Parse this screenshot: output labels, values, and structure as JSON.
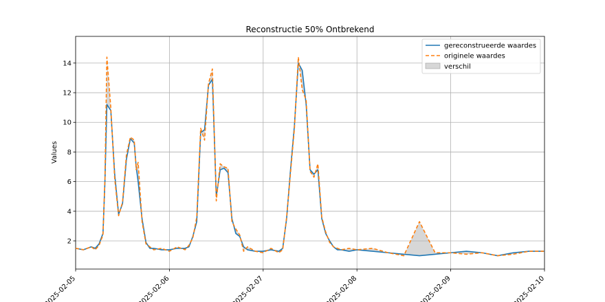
{
  "chart_data": {
    "type": "line",
    "title": "Reconstructie 50% Ontbrekend",
    "xlabel": "",
    "ylabel": "Values",
    "x_tick_labels": [
      "2025-02-05",
      "2025-02-06",
      "2025-02-07",
      "2025-02-08",
      "2025-02-09",
      "2025-02-10"
    ],
    "y_ticks": [
      2,
      4,
      6,
      8,
      10,
      12,
      14
    ],
    "xlim": [
      "2025-02-05",
      "2025-02-10"
    ],
    "ylim": [
      0.1,
      15.8
    ],
    "grid": true,
    "legend_position": "top-right",
    "series": [
      {
        "name": "gereconstrueerde waardes",
        "color": "#1f77b4",
        "style": "solid",
        "x": [
          "2025-02-05 00:00",
          "2025-02-05 02:00",
          "2025-02-05 04:00",
          "2025-02-05 05:00",
          "2025-02-05 06:00",
          "2025-02-05 07:00",
          "2025-02-05 07:30",
          "2025-02-05 08:00",
          "2025-02-05 09:00",
          "2025-02-05 10:00",
          "2025-02-05 11:00",
          "2025-02-05 12:00",
          "2025-02-05 13:00",
          "2025-02-05 14:00",
          "2025-02-05 15:00",
          "2025-02-05 15:30",
          "2025-02-05 16:00",
          "2025-02-05 17:00",
          "2025-02-05 18:00",
          "2025-02-05 19:00",
          "2025-02-05 20:00",
          "2025-02-05 22:00",
          "2025-02-06 00:00",
          "2025-02-06 02:00",
          "2025-02-06 04:00",
          "2025-02-06 05:00",
          "2025-02-06 06:00",
          "2025-02-06 07:00",
          "2025-02-06 08:00",
          "2025-02-06 09:00",
          "2025-02-06 10:00",
          "2025-02-06 11:00",
          "2025-02-06 11:30",
          "2025-02-06 12:00",
          "2025-02-06 13:00",
          "2025-02-06 14:00",
          "2025-02-06 15:00",
          "2025-02-06 16:00",
          "2025-02-06 17:00",
          "2025-02-06 18:00",
          "2025-02-06 19:00",
          "2025-02-06 20:00",
          "2025-02-06 22:00",
          "2025-02-07 00:00",
          "2025-02-07 02:00",
          "2025-02-07 04:00",
          "2025-02-07 05:00",
          "2025-02-07 06:00",
          "2025-02-07 07:00",
          "2025-02-07 08:00",
          "2025-02-07 09:00",
          "2025-02-07 10:00",
          "2025-02-07 11:00",
          "2025-02-07 12:00",
          "2025-02-07 13:00",
          "2025-02-07 14:00",
          "2025-02-07 15:00",
          "2025-02-07 16:00",
          "2025-02-07 17:00",
          "2025-02-07 18:00",
          "2025-02-07 19:00",
          "2025-02-07 20:00",
          "2025-02-07 22:00",
          "2025-02-08 00:00",
          "2025-02-08 04:00",
          "2025-02-08 08:00",
          "2025-02-08 12:00",
          "2025-02-08 16:00",
          "2025-02-08 20:00",
          "2025-02-09 00:00",
          "2025-02-09 04:00",
          "2025-02-09 08:00",
          "2025-02-09 12:00",
          "2025-02-09 16:00",
          "2025-02-09 20:00",
          "2025-02-10 00:00"
        ],
        "y": [
          1.5,
          1.4,
          1.6,
          1.5,
          1.8,
          2.5,
          6.0,
          11.2,
          10.8,
          6.5,
          3.8,
          4.5,
          7.5,
          8.9,
          8.6,
          7.0,
          6.0,
          3.5,
          1.9,
          1.5,
          1.5,
          1.4,
          1.4,
          1.5,
          1.5,
          1.6,
          2.3,
          3.3,
          9.3,
          9.5,
          12.5,
          12.9,
          9.0,
          5.0,
          6.8,
          6.9,
          6.6,
          3.5,
          2.5,
          2.3,
          1.6,
          1.4,
          1.3,
          1.3,
          1.4,
          1.3,
          1.5,
          3.5,
          6.8,
          9.8,
          14.0,
          13.5,
          11.2,
          6.8,
          6.5,
          6.8,
          3.5,
          2.5,
          2.0,
          1.6,
          1.4,
          1.4,
          1.3,
          1.4,
          1.3,
          1.2,
          1.1,
          1.0,
          1.1,
          1.2,
          1.3,
          1.2,
          1.0,
          1.2,
          1.3,
          1.3
        ]
      },
      {
        "name": "originele waardes",
        "color": "#ff7f0e",
        "style": "dashed",
        "x": [
          "2025-02-05 00:00",
          "2025-02-05 02:00",
          "2025-02-05 04:00",
          "2025-02-05 05:00",
          "2025-02-05 06:00",
          "2025-02-05 07:00",
          "2025-02-05 07:30",
          "2025-02-05 08:00",
          "2025-02-05 09:00",
          "2025-02-05 10:00",
          "2025-02-05 11:00",
          "2025-02-05 12:00",
          "2025-02-05 13:00",
          "2025-02-05 14:00",
          "2025-02-05 15:00",
          "2025-02-05 15:30",
          "2025-02-05 16:00",
          "2025-02-05 17:00",
          "2025-02-05 18:00",
          "2025-02-05 19:00",
          "2025-02-05 20:00",
          "2025-02-05 22:00",
          "2025-02-06 00:00",
          "2025-02-06 02:00",
          "2025-02-06 04:00",
          "2025-02-06 05:00",
          "2025-02-06 06:00",
          "2025-02-06 07:00",
          "2025-02-06 08:00",
          "2025-02-06 09:00",
          "2025-02-06 10:00",
          "2025-02-06 11:00",
          "2025-02-06 11:30",
          "2025-02-06 12:00",
          "2025-02-06 13:00",
          "2025-02-06 14:00",
          "2025-02-06 15:00",
          "2025-02-06 16:00",
          "2025-02-06 17:00",
          "2025-02-06 18:00",
          "2025-02-06 19:00",
          "2025-02-06 20:00",
          "2025-02-06 22:00",
          "2025-02-07 00:00",
          "2025-02-07 02:00",
          "2025-02-07 04:00",
          "2025-02-07 05:00",
          "2025-02-07 06:00",
          "2025-02-07 07:00",
          "2025-02-07 08:00",
          "2025-02-07 09:00",
          "2025-02-07 10:00",
          "2025-02-07 11:00",
          "2025-02-07 12:00",
          "2025-02-07 13:00",
          "2025-02-07 14:00",
          "2025-02-07 15:00",
          "2025-02-07 16:00",
          "2025-02-07 17:00",
          "2025-02-07 18:00",
          "2025-02-07 19:00",
          "2025-02-07 20:00",
          "2025-02-07 22:00",
          "2025-02-08 00:00",
          "2025-02-08 04:00",
          "2025-02-08 08:00",
          "2025-02-08 12:00",
          "2025-02-08 16:00",
          "2025-02-08 20:00",
          "2025-02-09 00:00",
          "2025-02-09 04:00",
          "2025-02-09 08:00",
          "2025-02-09 12:00",
          "2025-02-09 16:00",
          "2025-02-09 20:00",
          "2025-02-10 00:00"
        ],
        "y": [
          1.5,
          1.4,
          1.6,
          1.4,
          1.7,
          2.4,
          6.2,
          14.4,
          11.0,
          6.2,
          3.7,
          4.6,
          7.8,
          9.0,
          8.8,
          6.8,
          7.3,
          3.3,
          1.8,
          1.6,
          1.4,
          1.5,
          1.3,
          1.6,
          1.4,
          1.7,
          2.2,
          3.6,
          9.6,
          8.8,
          12.6,
          13.6,
          9.2,
          4.7,
          7.2,
          7.0,
          6.9,
          3.3,
          2.8,
          2.4,
          1.3,
          1.6,
          1.3,
          1.2,
          1.5,
          1.2,
          1.4,
          3.6,
          6.6,
          9.6,
          14.4,
          12.2,
          11.5,
          6.7,
          6.3,
          7.2,
          3.6,
          2.6,
          1.9,
          1.6,
          1.5,
          1.4,
          1.5,
          1.4,
          1.5,
          1.2,
          1.0,
          3.3,
          1.2,
          1.2,
          1.1,
          1.2,
          1.0,
          1.1,
          1.3,
          1.3
        ]
      }
    ],
    "difference": {
      "name": "verschil",
      "color": "#b0b0b0"
    }
  }
}
